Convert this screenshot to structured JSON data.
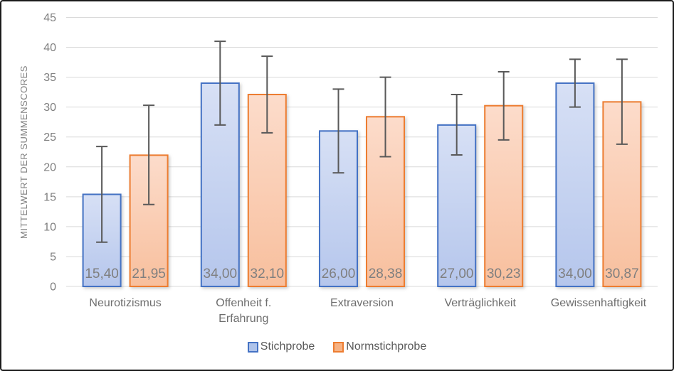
{
  "frame": {
    "background": "#ffffff",
    "border_color": "#1b1b1b"
  },
  "chart_data": {
    "type": "bar",
    "title": "",
    "xlabel": "",
    "ylabel": "MITTELWERT DER SUMMENSCORES",
    "ylim": [
      0,
      45
    ],
    "yticks": [
      0,
      5,
      10,
      15,
      20,
      25,
      30,
      35,
      40,
      45
    ],
    "grid": true,
    "legend_position": "bottom-center",
    "decimal_separator": ",",
    "categories": [
      "Neurotizismus",
      "Offenheit f.\nErfahrung",
      "Extraversion",
      "Verträglichkeit",
      "Gewissenhaftigkeit"
    ],
    "series": [
      {
        "name": "Stichprobe",
        "values": [
          15.4,
          34.0,
          26.0,
          27.0,
          34.0
        ],
        "labels": [
          "15,40",
          "34,00",
          "26,00",
          "27,00",
          "34,00"
        ],
        "error_low": [
          7.4,
          27.0,
          19.0,
          22.0,
          30.0
        ],
        "error_high": [
          23.4,
          41.0,
          33.0,
          32.1,
          38.0
        ],
        "fill_top": "#d7e0f5",
        "fill_bottom": "#b5c6ec",
        "border_color": "#4472c4",
        "legend_fill": "#aec3ea"
      },
      {
        "name": "Normstichprobe",
        "values": [
          21.95,
          32.1,
          28.38,
          30.23,
          30.87
        ],
        "labels": [
          "21,95",
          "32,10",
          "28,38",
          "30,23",
          "30,87"
        ],
        "error_low": [
          13.7,
          25.7,
          21.7,
          24.5,
          23.8
        ],
        "error_high": [
          30.3,
          38.5,
          35.0,
          35.9,
          38.0
        ],
        "fill_top": "#fcdccb",
        "fill_bottom": "#f8bf9d",
        "border_color": "#ed7d31",
        "legend_fill": "#f6b284"
      }
    ],
    "colors": {
      "gridline": "#d9d9d9",
      "axis_line": "#d9d9d9",
      "error_bar": "#595959",
      "tick_label": "#808080",
      "axis_title": "#808080",
      "category_label": "#6e6e6e",
      "bar_value_label": "#7f7f7f",
      "legend_text": "#595959"
    }
  }
}
